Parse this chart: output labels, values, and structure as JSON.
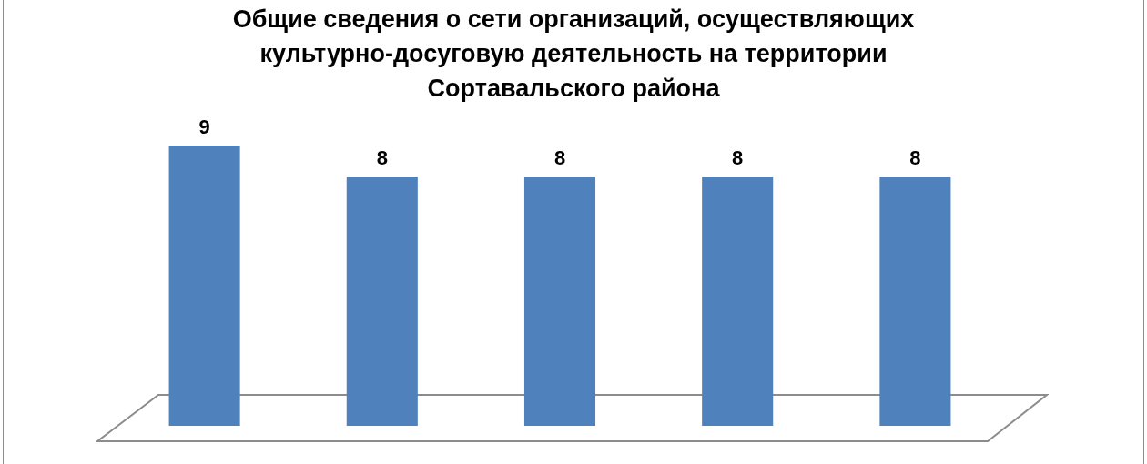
{
  "chart_data": {
    "type": "bar",
    "title": "Общие сведения о сети организаций, осуществляющих культурно-досуговую деятельность на территории Сортавальского района",
    "categories": [
      null,
      null,
      null,
      null,
      null
    ],
    "values": [
      9,
      8,
      8,
      8,
      8
    ],
    "color": "#4f81bd",
    "data_labels": true
  }
}
